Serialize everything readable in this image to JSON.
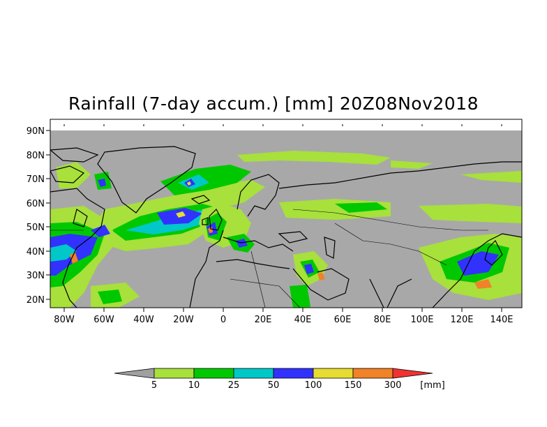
{
  "title": "Rainfall (7-day accum.) [mm] 20Z08Nov2018",
  "map": {
    "lat_labels": [
      "90N",
      "80N",
      "70N",
      "60N",
      "50N",
      "40N",
      "30N",
      "20N"
    ],
    "lon_labels": [
      "80W",
      "60W",
      "40W",
      "20W",
      "0",
      "20E",
      "40E",
      "60E",
      "80E",
      "100E",
      "120E",
      "140E"
    ],
    "colors": {
      "land_no_rain": "#a8a8a8",
      "coast": "#000000"
    }
  },
  "legend": {
    "thresholds": [
      "5",
      "10",
      "25",
      "50",
      "100",
      "150",
      "300"
    ],
    "unit": "[mm]",
    "colors": [
      "#a0a0a0",
      "#a8e03c",
      "#00c800",
      "#00c8c8",
      "#3232ff",
      "#e6dc32",
      "#f08228",
      "#f03232"
    ]
  }
}
